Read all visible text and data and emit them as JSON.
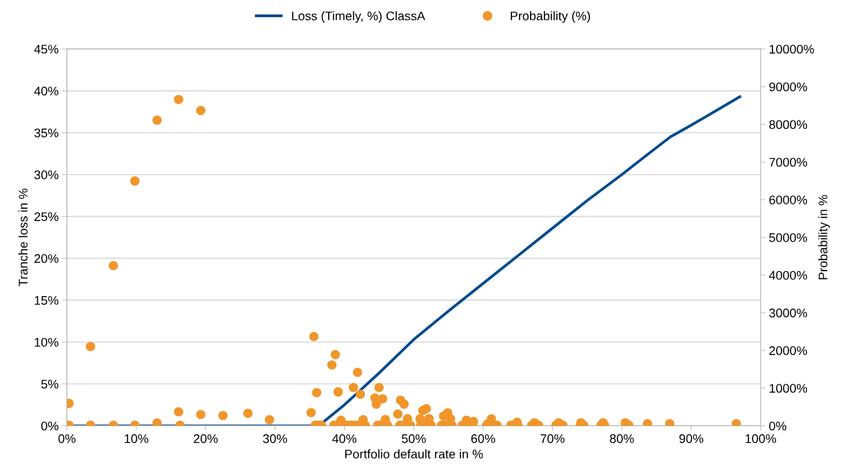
{
  "chart_data": {
    "type": "scatter",
    "xlabel": "Portfolio default rate in %",
    "ylabel": "Tranche loss in %",
    "y2label": "Probability in %",
    "xlim": [
      0,
      100
    ],
    "xticks": [
      {
        "value": 0,
        "label": "0%"
      },
      {
        "value": 10,
        "label": "10%"
      },
      {
        "value": 20,
        "label": "20%"
      },
      {
        "value": 30,
        "label": "30%"
      },
      {
        "value": 40,
        "label": "40%"
      },
      {
        "value": 50,
        "label": "50%"
      },
      {
        "value": 60,
        "label": "60%"
      },
      {
        "value": 70,
        "label": "70%"
      },
      {
        "value": 80,
        "label": "80%"
      },
      {
        "value": 90,
        "label": "90%"
      },
      {
        "value": 100,
        "label": "100%"
      }
    ],
    "ylim": [
      0,
      45
    ],
    "yticks": [
      {
        "value": 0,
        "label": "0%"
      },
      {
        "value": 5,
        "label": "5%"
      },
      {
        "value": 10,
        "label": "10%"
      },
      {
        "value": 15,
        "label": "15%"
      },
      {
        "value": 20,
        "label": "20%"
      },
      {
        "value": 25,
        "label": "25%"
      },
      {
        "value": 30,
        "label": "30%"
      },
      {
        "value": 35,
        "label": "35%"
      },
      {
        "value": 40,
        "label": "40%"
      },
      {
        "value": 45,
        "label": "45%"
      }
    ],
    "y2lim": [
      0,
      10000
    ],
    "y2ticks": [
      {
        "value": 0,
        "label": "0%"
      },
      {
        "value": 1000,
        "label": "1000%"
      },
      {
        "value": 2000,
        "label": "2000%"
      },
      {
        "value": 3000,
        "label": "3000%"
      },
      {
        "value": 4000,
        "label": "4000%"
      },
      {
        "value": 5000,
        "label": "5000%"
      },
      {
        "value": 6000,
        "label": "6000%"
      },
      {
        "value": 7000,
        "label": "7000%"
      },
      {
        "value": 8000,
        "label": "8000%"
      },
      {
        "value": 9000,
        "label": "9000%"
      },
      {
        "value": 10000,
        "label": "10000%"
      }
    ],
    "grid": "y",
    "legend": "top",
    "series": [
      {
        "name": "Loss (Timely, %) ClassA",
        "type": "line",
        "color": "#004b8d",
        "marker": "none",
        "line_style": "solid",
        "x": [
          0,
          36.3,
          40,
          45,
          50,
          55,
          60,
          65,
          70,
          75,
          80,
          84,
          87,
          90,
          97
        ],
        "values": [
          0,
          0,
          2.5,
          6.3,
          10.3,
          13.7,
          17.0,
          20.3,
          23.6,
          26.9,
          30.0,
          32.6,
          34.5,
          35.9,
          39.3
        ]
      },
      {
        "name": "Probability (%)",
        "color": "#f0962a",
        "marker": "circle",
        "axis": "y2",
        "x": [
          0.3,
          3.4,
          6.7,
          9.8,
          13.0,
          16.1,
          19.3,
          0.3,
          3.4,
          6.7,
          9.8,
          13.0,
          16.3,
          16.1,
          19.3,
          22.5,
          26.1,
          29.2,
          35.2,
          35.6,
          36.0,
          38.2,
          38.7,
          39.1,
          41.3,
          41.9,
          42.3,
          44.4,
          45.0,
          45.5,
          44.6,
          48.1,
          48.6,
          47.7,
          51.3,
          51.8,
          35.8,
          36.3,
          36.7,
          38.5,
          39.0,
          39.5,
          40.0,
          40.5,
          41.0,
          41.5,
          42.0,
          42.5,
          42.7,
          43.0,
          44.8,
          45.2,
          45.7,
          45.9,
          46.2,
          48.0,
          48.5,
          49.0,
          49.1,
          49.5,
          50.9,
          51.0,
          51.5,
          52.0,
          52.2,
          52.5,
          54.0,
          54.3,
          54.5,
          54.9,
          55.0,
          55.3,
          55.5,
          57.0,
          57.5,
          57.6,
          58.0,
          58.5,
          58.6,
          60.5,
          60.7,
          61.0,
          61.2,
          61.5,
          62.0,
          64.0,
          64.5,
          64.9,
          65.0,
          67.0,
          67.4,
          67.5,
          68.0,
          70.5,
          70.9,
          71.0,
          71.5,
          74.0,
          74.1,
          74.5,
          77.0,
          77.3,
          77.5,
          80.5,
          81.0,
          83.7,
          86.9,
          96.5
        ],
        "values": [
          593,
          2105,
          4252,
          6496,
          8111,
          8661,
          8368,
          15,
          15,
          15,
          15,
          73,
          15,
          372,
          299,
          270,
          330,
          160,
          349,
          2367,
          880,
          1615,
          1890,
          899,
          1015,
          1419,
          838,
          736,
          1015,
          716,
          575,
          679,
          575,
          312,
          404,
          453,
          15,
          15,
          15,
          15,
          15,
          147,
          15,
          15,
          15,
          15,
          15,
          15,
          160,
          15,
          15,
          15,
          15,
          165,
          15,
          15,
          15,
          15,
          190,
          15,
          183,
          15,
          15,
          15,
          190,
          15,
          15,
          257,
          15,
          343,
          15,
          183,
          15,
          15,
          15,
          147,
          15,
          15,
          114,
          15,
          55,
          15,
          183,
          15,
          15,
          15,
          15,
          92,
          15,
          15,
          81,
          15,
          15,
          15,
          81,
          15,
          15,
          15,
          81,
          15,
          15,
          81,
          15,
          81,
          15,
          55,
          55,
          55
        ]
      }
    ]
  }
}
